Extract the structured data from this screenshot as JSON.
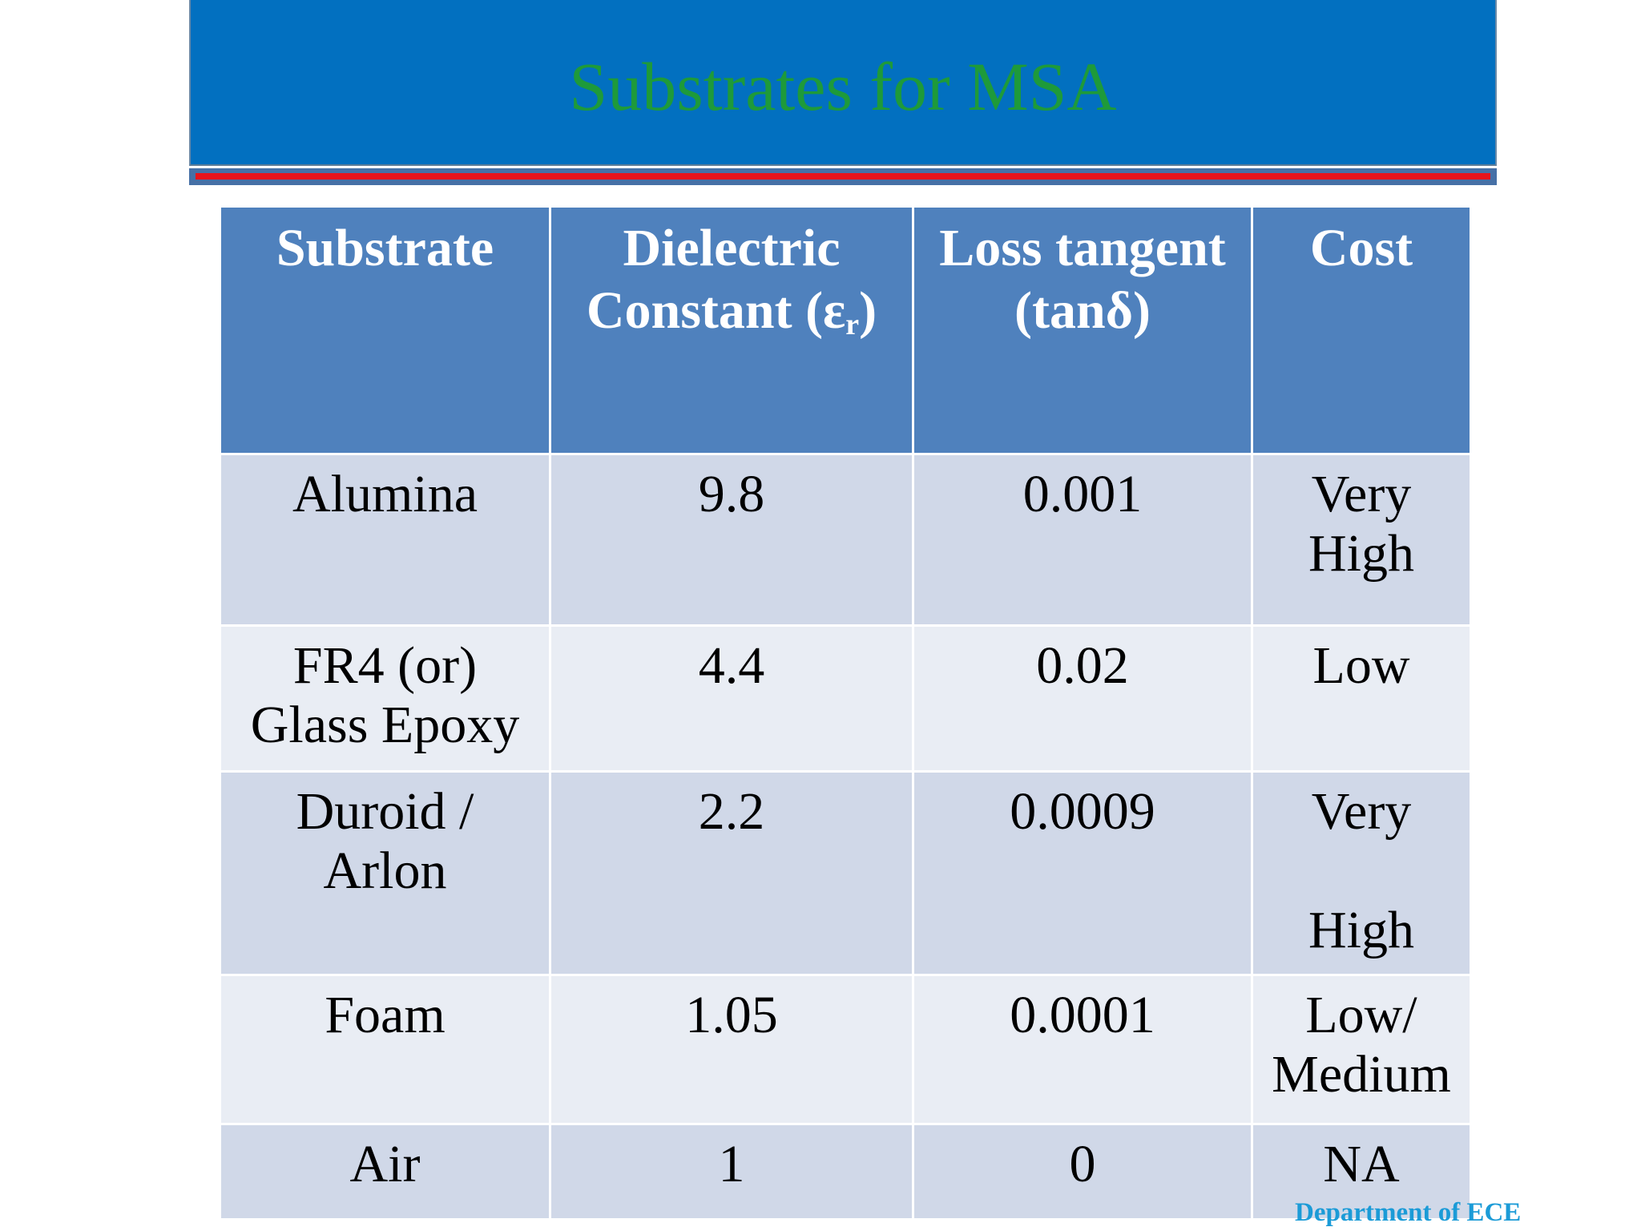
{
  "slide": {
    "title": "Substrates for MSA",
    "footer": "Department of ECE"
  },
  "table": {
    "headers": {
      "substrate": "Substrate",
      "dielectric_line1": "Dielectric",
      "dielectric_line2_pre": "Constant (ε",
      "dielectric_sub": "r",
      "dielectric_line2_post": ")",
      "loss_line1": "Loss tangent",
      "loss_line2": "(tanδ)",
      "cost": "Cost"
    },
    "rows": [
      {
        "substrate": "Alumina",
        "dielectric": "9.8",
        "loss": "0.001",
        "cost": "Very\nHigh"
      },
      {
        "substrate": "FR4 (or)\nGlass Epoxy",
        "dielectric": "4.4",
        "loss": "0.02",
        "cost": "Low"
      },
      {
        "substrate": "Duroid /\n Arlon",
        "dielectric": "2.2",
        "loss": "0.0009",
        "cost": "Very\n\nHigh"
      },
      {
        "substrate": "Foam",
        "dielectric": "1.05",
        "loss": "0.0001",
        "cost": "Low/\nMedium"
      },
      {
        "substrate": "Air",
        "dielectric": "1",
        "loss": "0",
        "cost": "NA"
      }
    ]
  },
  "colors": {
    "title_bar": "#0270c0",
    "title_text": "#1e9a3a",
    "header_fill": "#4f81bd",
    "row_odd": "#d0d8e8",
    "row_even": "#e9edf4",
    "accent_rule": "#e8141c",
    "footer_text": "#1b9bd7"
  }
}
